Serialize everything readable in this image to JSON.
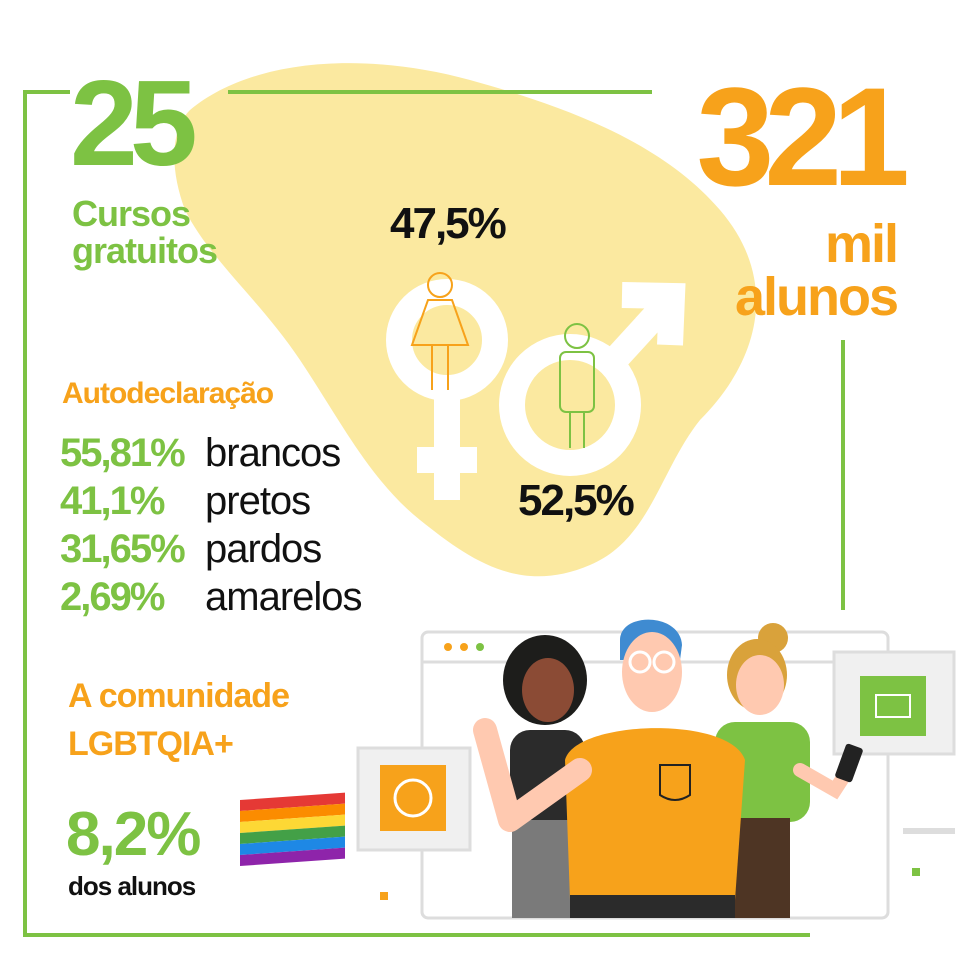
{
  "courses": {
    "number": "25",
    "label_line1": "Cursos",
    "label_line2": "gratuitos"
  },
  "students": {
    "number": "321",
    "label_line1": "mil",
    "label_line2": "alunos"
  },
  "gender": {
    "female": "47,5%",
    "male": "52,5%"
  },
  "self_declaration": {
    "title": "Autodeclaração",
    "rows": [
      [
        "55,81%",
        "brancos"
      ],
      [
        "41,1%",
        "pretos"
      ],
      [
        "31,65%",
        "pardos"
      ],
      [
        "2,69%",
        "amarelos"
      ]
    ]
  },
  "lgbt": {
    "title_line1": "A comunidade",
    "title_line2": "LGBTQIA+",
    "value": "8,2%",
    "caption": "dos alunos"
  }
}
